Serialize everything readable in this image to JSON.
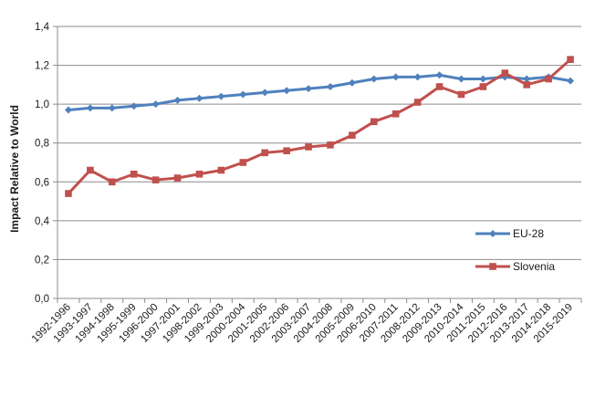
{
  "chart_data": {
    "type": "line",
    "title": "",
    "xlabel": "",
    "ylabel": "Impact Relative to World",
    "ylim": [
      0,
      1.4
    ],
    "yticks": [
      "0,0",
      "0,2",
      "0,4",
      "0,6",
      "0,8",
      "1,0",
      "1,2",
      "1,4"
    ],
    "grid": "horizontal",
    "legend_position": "right",
    "categories": [
      "1992-1996",
      "1993-1997",
      "1994-1998",
      "1995-1999",
      "1996-2000",
      "1997-2001",
      "1998-2002",
      "1999-2003",
      "2000-2004",
      "2001-2005",
      "2002-2006",
      "2003-2007",
      "2004-2008",
      "2005-2009",
      "2006-2010",
      "2007-2011",
      "2008-2012",
      "2009-2013",
      "2010-2014",
      "2011-2015",
      "2012-2016",
      "2013-2017",
      "2014-2018",
      "2015-2019"
    ],
    "series": [
      {
        "name": "EU-28",
        "color": "#4F81BD",
        "marker": "diamond",
        "values": [
          0.97,
          0.98,
          0.98,
          0.99,
          1.0,
          1.02,
          1.03,
          1.04,
          1.05,
          1.06,
          1.07,
          1.08,
          1.09,
          1.11,
          1.13,
          1.14,
          1.14,
          1.15,
          1.13,
          1.13,
          1.14,
          1.13,
          1.14,
          1.12
        ]
      },
      {
        "name": "Slovenia",
        "color": "#C0504D",
        "marker": "square",
        "values": [
          0.54,
          0.66,
          0.6,
          0.64,
          0.61,
          0.62,
          0.64,
          0.66,
          0.7,
          0.75,
          0.76,
          0.78,
          0.79,
          0.84,
          0.91,
          0.95,
          1.01,
          1.09,
          1.05,
          1.09,
          1.16,
          1.1,
          1.13,
          1.23
        ]
      }
    ]
  }
}
